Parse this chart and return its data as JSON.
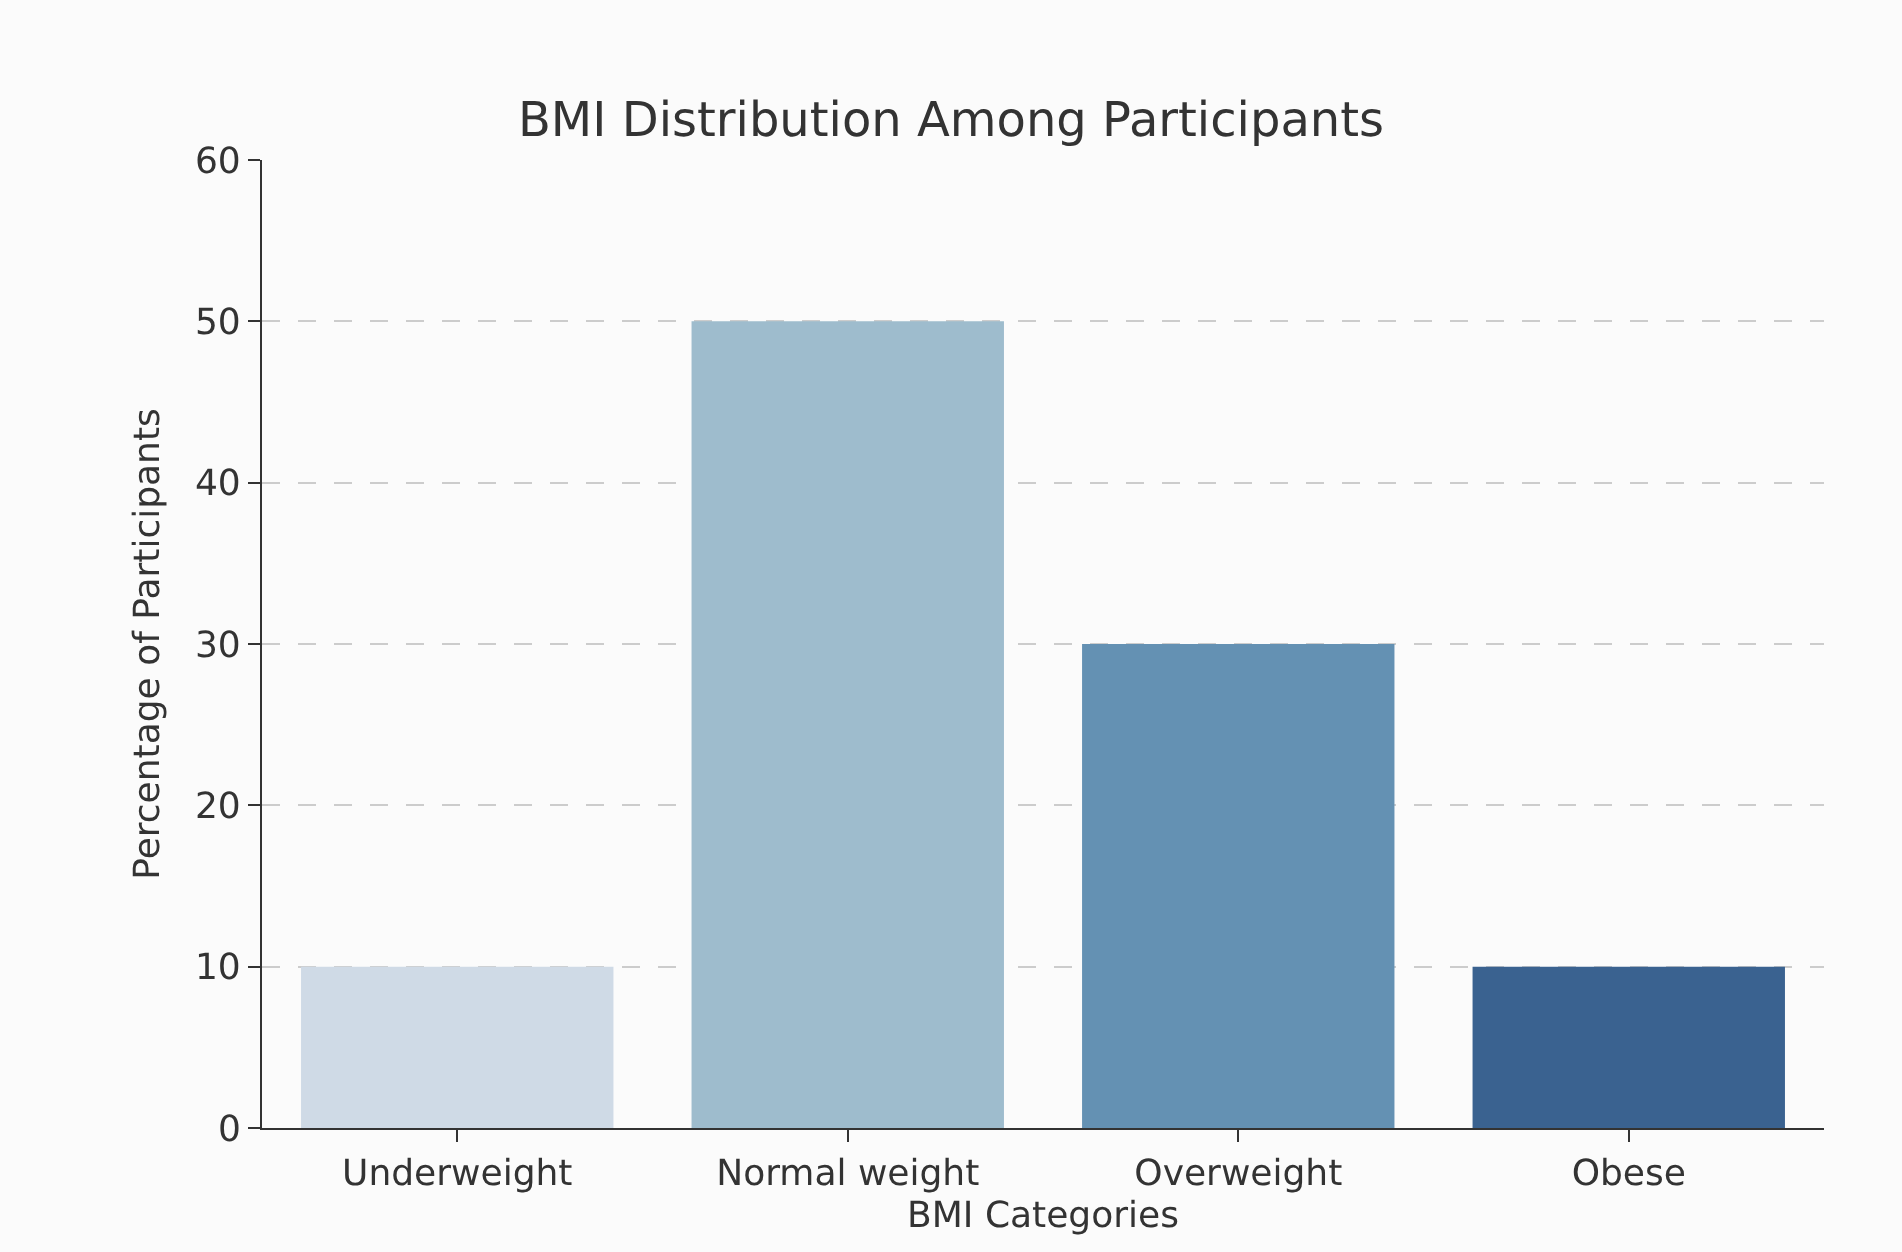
{
  "chart_data": {
    "type": "bar",
    "title": "BMI Distribution Among Participants",
    "xlabel": "BMI Categories",
    "ylabel": "Percentage of Participants",
    "categories": [
      "Underweight",
      "Normal weight",
      "Overweight",
      "Obese"
    ],
    "values": [
      10,
      50,
      30,
      10
    ],
    "colors": [
      "#cfdae6",
      "#9ebccd",
      "#6491b3",
      "#3a6290"
    ],
    "ylim": [
      0,
      60
    ],
    "yticks": [
      0,
      10,
      20,
      30,
      40,
      50,
      60
    ],
    "grid": "y"
  }
}
